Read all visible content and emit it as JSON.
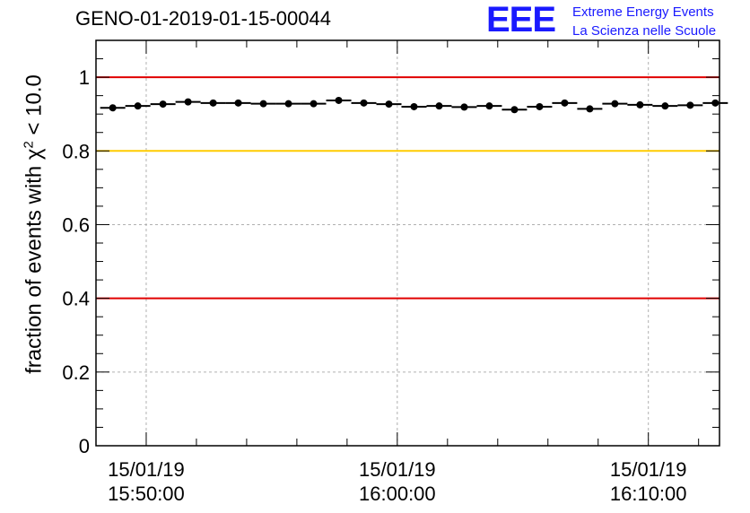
{
  "chart_data": {
    "type": "scatter",
    "title": "GENO-01-2019-01-15-00044",
    "ylabel": "fraction of events with",
    "ylabel_symbol": "χ",
    "ylabel_exp": "2",
    "ylabel_cut": "< 10.0",
    "ylim": [
      0,
      1.1
    ],
    "yticks": [
      "0",
      "0.2",
      "0.4",
      "0.6",
      "0.8",
      "1"
    ],
    "xticks": [
      {
        "date": "15/01/19",
        "time": "15:50:00"
      },
      {
        "date": "15/01/19",
        "time": "16:00:00"
      },
      {
        "date": "15/01/19",
        "time": "16:10:00"
      }
    ],
    "grid": true,
    "reference_lines": [
      {
        "y": 1.0,
        "color": "#e00000"
      },
      {
        "y": 0.8,
        "color": "#ffcc00"
      },
      {
        "y": 0.4,
        "color": "#e00000"
      }
    ],
    "series": [
      {
        "x": [
          "15:48:40",
          "15:49:40",
          "15:50:40",
          "15:51:40",
          "15:52:40",
          "15:53:40",
          "15:54:40",
          "15:55:40",
          "15:56:40",
          "15:57:40",
          "15:58:40",
          "15:59:40",
          "16:00:40",
          "16:01:40",
          "16:02:40",
          "16:03:40",
          "16:04:40",
          "16:05:40",
          "16:06:40",
          "16:07:40",
          "16:08:40",
          "16:09:40",
          "16:10:40",
          "16:11:40",
          "16:12:40"
        ],
        "values": [
          0.917,
          0.922,
          0.927,
          0.933,
          0.93,
          0.93,
          0.928,
          0.928,
          0.928,
          0.937,
          0.93,
          0.927,
          0.92,
          0.922,
          0.919,
          0.922,
          0.912,
          0.92,
          0.93,
          0.914,
          0.928,
          0.925,
          0.922,
          0.924,
          0.93
        ]
      }
    ]
  },
  "logo": {
    "mark": "EEE",
    "line1": "Extreme Energy Events",
    "line2": "La Scienza nelle Scuole"
  },
  "colors": {
    "logo": "#1a1aff",
    "marker": "#000000"
  }
}
